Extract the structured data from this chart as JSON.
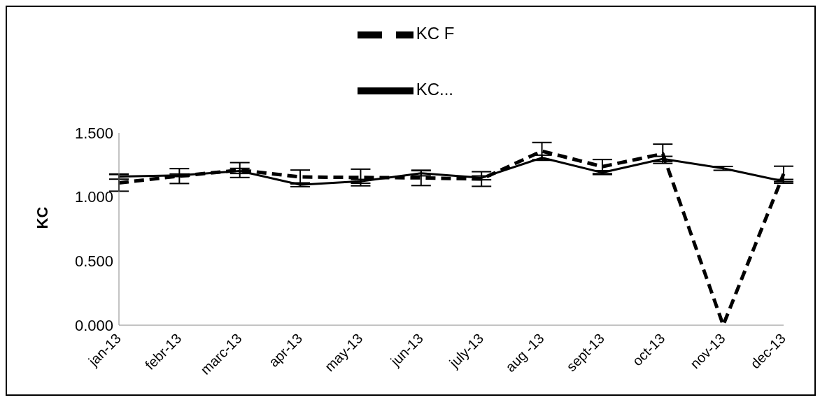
{
  "chart_data": {
    "type": "line",
    "ylabel": "KC",
    "categories": [
      "jan-13",
      "febr-13",
      "marc-13",
      "apr-13",
      "may-13",
      "jun-13",
      "july-13",
      "aug -13",
      "sept-13",
      "oct-13",
      "nov-13",
      "dec-13"
    ],
    "series": [
      {
        "name": "KC F",
        "color": "#000000",
        "line_style": "dashed",
        "values": [
          1.11,
          1.163,
          1.21,
          1.156,
          1.152,
          1.149,
          1.14,
          1.358,
          1.237,
          1.337,
          0,
          1.18
        ],
        "errors": [
          0.065,
          0.058,
          0.058,
          0.054,
          0.065,
          0.06,
          0.057,
          0.067,
          0.055,
          0.075,
          null,
          0.06
        ]
      },
      {
        "name": "KC...",
        "color": "#000000",
        "line_style": "solid",
        "values": [
          1.159,
          1.169,
          1.203,
          1.095,
          1.122,
          1.185,
          1.149,
          1.306,
          1.19,
          1.297,
          1.223,
          1.122
        ],
        "errors": [
          0.02,
          0.01,
          0.02,
          0.015,
          0.015,
          0.02,
          0.015,
          0.02,
          0.015,
          0.02,
          0.015,
          0.015
        ]
      }
    ],
    "ylim": [
      0,
      1.5
    ],
    "yticks": [
      {
        "value": 0,
        "label": "0.000"
      },
      {
        "value": 0.5,
        "label": "0.500"
      },
      {
        "value": 1,
        "label": "1.000"
      },
      {
        "value": 1.5,
        "label": "1.500"
      }
    ],
    "grid": false,
    "legend": "top",
    "marker": "none"
  }
}
